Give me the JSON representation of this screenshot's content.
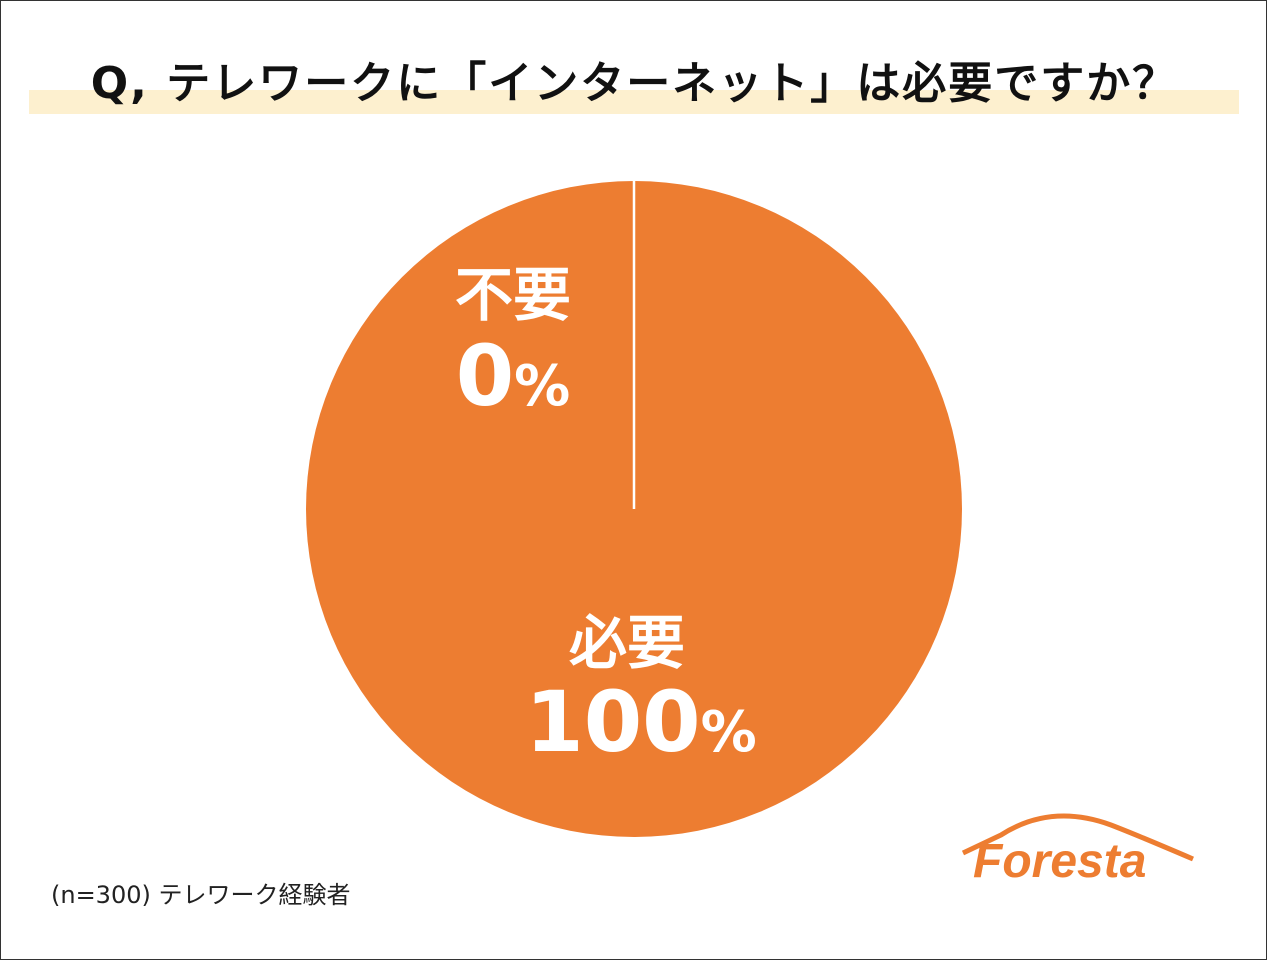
{
  "title": "Q, テレワークに「インターネット」は必要ですか？",
  "note": "(n=300) テレワーク経験者",
  "logo": {
    "text": "Foresta",
    "color": "#ed7d31"
  },
  "colors": {
    "slice": "#ed7d31",
    "label": "#ffffff",
    "title_band": "#fdf0cf"
  },
  "chart_data": {
    "type": "pie",
    "slices": [
      {
        "name": "必要",
        "value": 100,
        "value_label": "100%"
      },
      {
        "name": "不要",
        "value": 0,
        "value_label": "0%"
      }
    ]
  }
}
